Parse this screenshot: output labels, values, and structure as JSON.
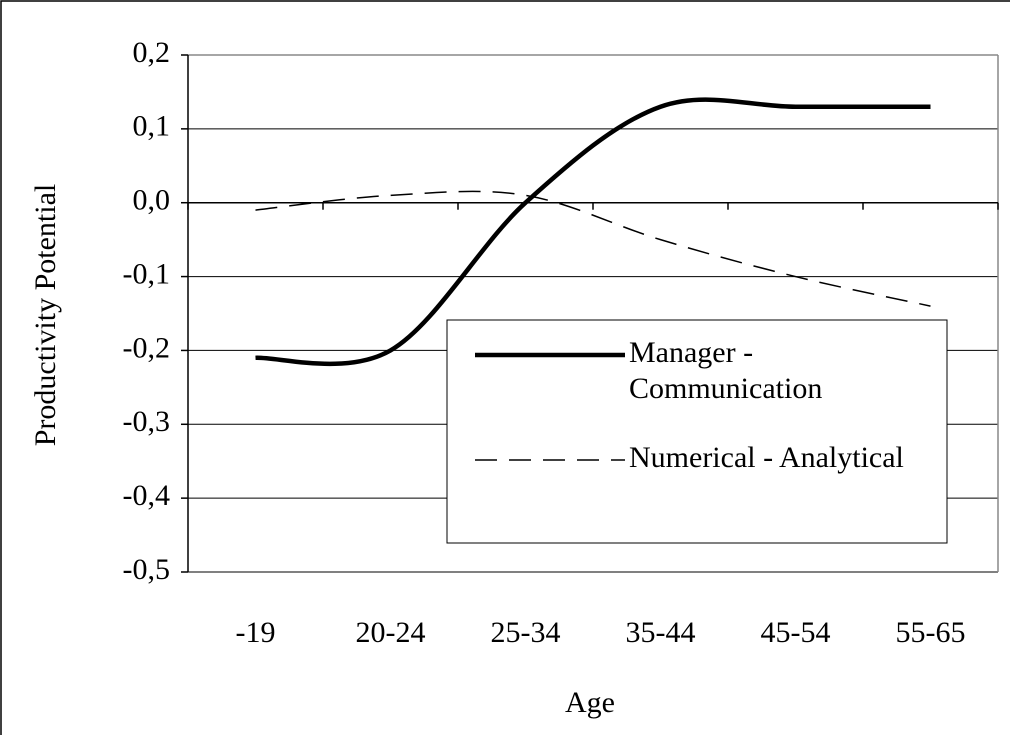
{
  "chart_data": {
    "type": "line",
    "x_label": "Age",
    "y_label": "Productivity Potential",
    "categories": [
      "-19",
      "20-24",
      "25-34",
      "35-44",
      "45-54",
      "55-65"
    ],
    "series": [
      {
        "name": "Manager - Communication",
        "color": "#000000",
        "dash": "solid",
        "values": [
          -0.21,
          -0.2,
          0.0,
          0.13,
          0.13,
          0.13
        ]
      },
      {
        "name": "Numerical - Analytical",
        "color": "#000000",
        "dash": "dashed",
        "values": [
          -0.01,
          0.01,
          0.01,
          -0.05,
          -0.1,
          -0.14
        ]
      }
    ],
    "ylim": [
      -0.5,
      0.2
    ],
    "yticks": [
      {
        "value": -0.5,
        "label": "-0,5"
      },
      {
        "value": -0.4,
        "label": "-0,4"
      },
      {
        "value": -0.3,
        "label": "-0,3"
      },
      {
        "value": -0.2,
        "label": "-0,2"
      },
      {
        "value": -0.1,
        "label": "-0,1"
      },
      {
        "value": 0,
        "label": "0,0"
      },
      {
        "value": 0.1,
        "label": "0,1"
      },
      {
        "value": 0.2,
        "label": "0,2"
      }
    ],
    "grid": true,
    "legend": "lower right"
  }
}
